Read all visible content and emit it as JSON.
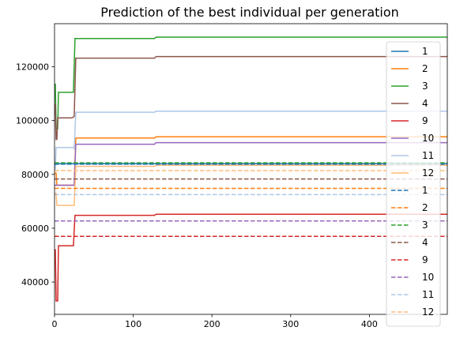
{
  "chart_data": {
    "type": "line",
    "title": "Prediction of the best individual per generation",
    "xlabel": "",
    "ylabel": "",
    "xlim": [
      0,
      499
    ],
    "ylim": [
      28000,
      136000
    ],
    "x_ticks": [
      0,
      100,
      200,
      300,
      400
    ],
    "y_ticks": [
      40000,
      60000,
      80000,
      100000,
      120000
    ],
    "grid": false,
    "legend_position": "upper right",
    "series": [
      {
        "name": "1",
        "color": "#1f77b4",
        "style": "solid",
        "points": [
          [
            0,
            84000
          ],
          [
            499,
            84000
          ]
        ]
      },
      {
        "name": "2",
        "color": "#ff7f0e",
        "style": "solid",
        "points": [
          [
            0,
            80500
          ],
          [
            2,
            80500
          ],
          [
            3,
            76000
          ],
          [
            25,
            76000
          ],
          [
            27,
            93500
          ],
          [
            127,
            93500
          ],
          [
            129,
            94000
          ],
          [
            499,
            94000
          ]
        ]
      },
      {
        "name": "3",
        "color": "#2ca02c",
        "style": "solid",
        "points": [
          [
            0,
            113500
          ],
          [
            1,
            113500
          ],
          [
            2,
            97000
          ],
          [
            4,
            97000
          ],
          [
            5,
            110500
          ],
          [
            24,
            110500
          ],
          [
            26,
            130500
          ],
          [
            127,
            130500
          ],
          [
            129,
            131000
          ],
          [
            499,
            131000
          ]
        ]
      },
      {
        "name": "4",
        "color": "#8c564b",
        "style": "solid",
        "points": [
          [
            0,
            106000
          ],
          [
            1,
            106000
          ],
          [
            2,
            93000
          ],
          [
            3,
            93000
          ],
          [
            4,
            101000
          ],
          [
            22,
            101000
          ],
          [
            25,
            101500
          ],
          [
            27,
            123200
          ],
          [
            127,
            123200
          ],
          [
            129,
            123800
          ],
          [
            499,
            123800
          ]
        ]
      },
      {
        "name": "9",
        "color": "#d62728",
        "style": "solid",
        "points": [
          [
            0,
            52000
          ],
          [
            1,
            52000
          ],
          [
            2,
            33000
          ],
          [
            4,
            33000
          ],
          [
            5,
            53500
          ],
          [
            24,
            53500
          ],
          [
            26,
            64800
          ],
          [
            127,
            64800
          ],
          [
            129,
            65200
          ],
          [
            499,
            65200
          ]
        ]
      },
      {
        "name": "10",
        "color": "#9467bd",
        "style": "solid",
        "points": [
          [
            0,
            76000
          ],
          [
            25,
            76000
          ],
          [
            27,
            91200
          ],
          [
            127,
            91200
          ],
          [
            129,
            91800
          ],
          [
            499,
            91800
          ]
        ]
      },
      {
        "name": "11",
        "color": "#aec7e8",
        "style": "solid",
        "points": [
          [
            0,
            82000
          ],
          [
            1,
            82000
          ],
          [
            2,
            90000
          ],
          [
            24,
            90000
          ],
          [
            25,
            89600
          ],
          [
            27,
            103100
          ],
          [
            127,
            103100
          ],
          [
            129,
            103500
          ],
          [
            499,
            103500
          ]
        ]
      },
      {
        "name": "12",
        "color": "#ffbb78",
        "style": "solid",
        "points": [
          [
            0,
            73000
          ],
          [
            2,
            73000
          ],
          [
            3,
            68500
          ],
          [
            25,
            68500
          ],
          [
            27,
            83000
          ],
          [
            127,
            83000
          ],
          [
            129,
            83400
          ],
          [
            499,
            83400
          ]
        ]
      },
      {
        "name": "1",
        "color": "#1f77b4",
        "style": "dashed",
        "points": [
          [
            0,
            83800
          ],
          [
            499,
            83800
          ]
        ]
      },
      {
        "name": "2",
        "color": "#ff7f0e",
        "style": "dashed",
        "points": [
          [
            0,
            74800
          ],
          [
            499,
            74800
          ]
        ]
      },
      {
        "name": "3",
        "color": "#2ca02c",
        "style": "dashed",
        "points": [
          [
            0,
            84300
          ],
          [
            499,
            84300
          ]
        ]
      },
      {
        "name": "4",
        "color": "#8c564b",
        "style": "dashed",
        "points": [
          [
            0,
            78300
          ],
          [
            499,
            78300
          ]
        ]
      },
      {
        "name": "9",
        "color": "#d62728",
        "style": "dashed",
        "points": [
          [
            0,
            57000
          ],
          [
            499,
            57000
          ]
        ]
      },
      {
        "name": "10",
        "color": "#9467bd",
        "style": "dashed",
        "points": [
          [
            0,
            62700
          ],
          [
            499,
            62700
          ]
        ]
      },
      {
        "name": "11",
        "color": "#aec7e8",
        "style": "dashed",
        "points": [
          [
            0,
            72500
          ],
          [
            499,
            72500
          ]
        ]
      },
      {
        "name": "12",
        "color": "#ffbb78",
        "style": "dashed",
        "points": [
          [
            0,
            81400
          ],
          [
            499,
            81400
          ]
        ]
      }
    ]
  }
}
